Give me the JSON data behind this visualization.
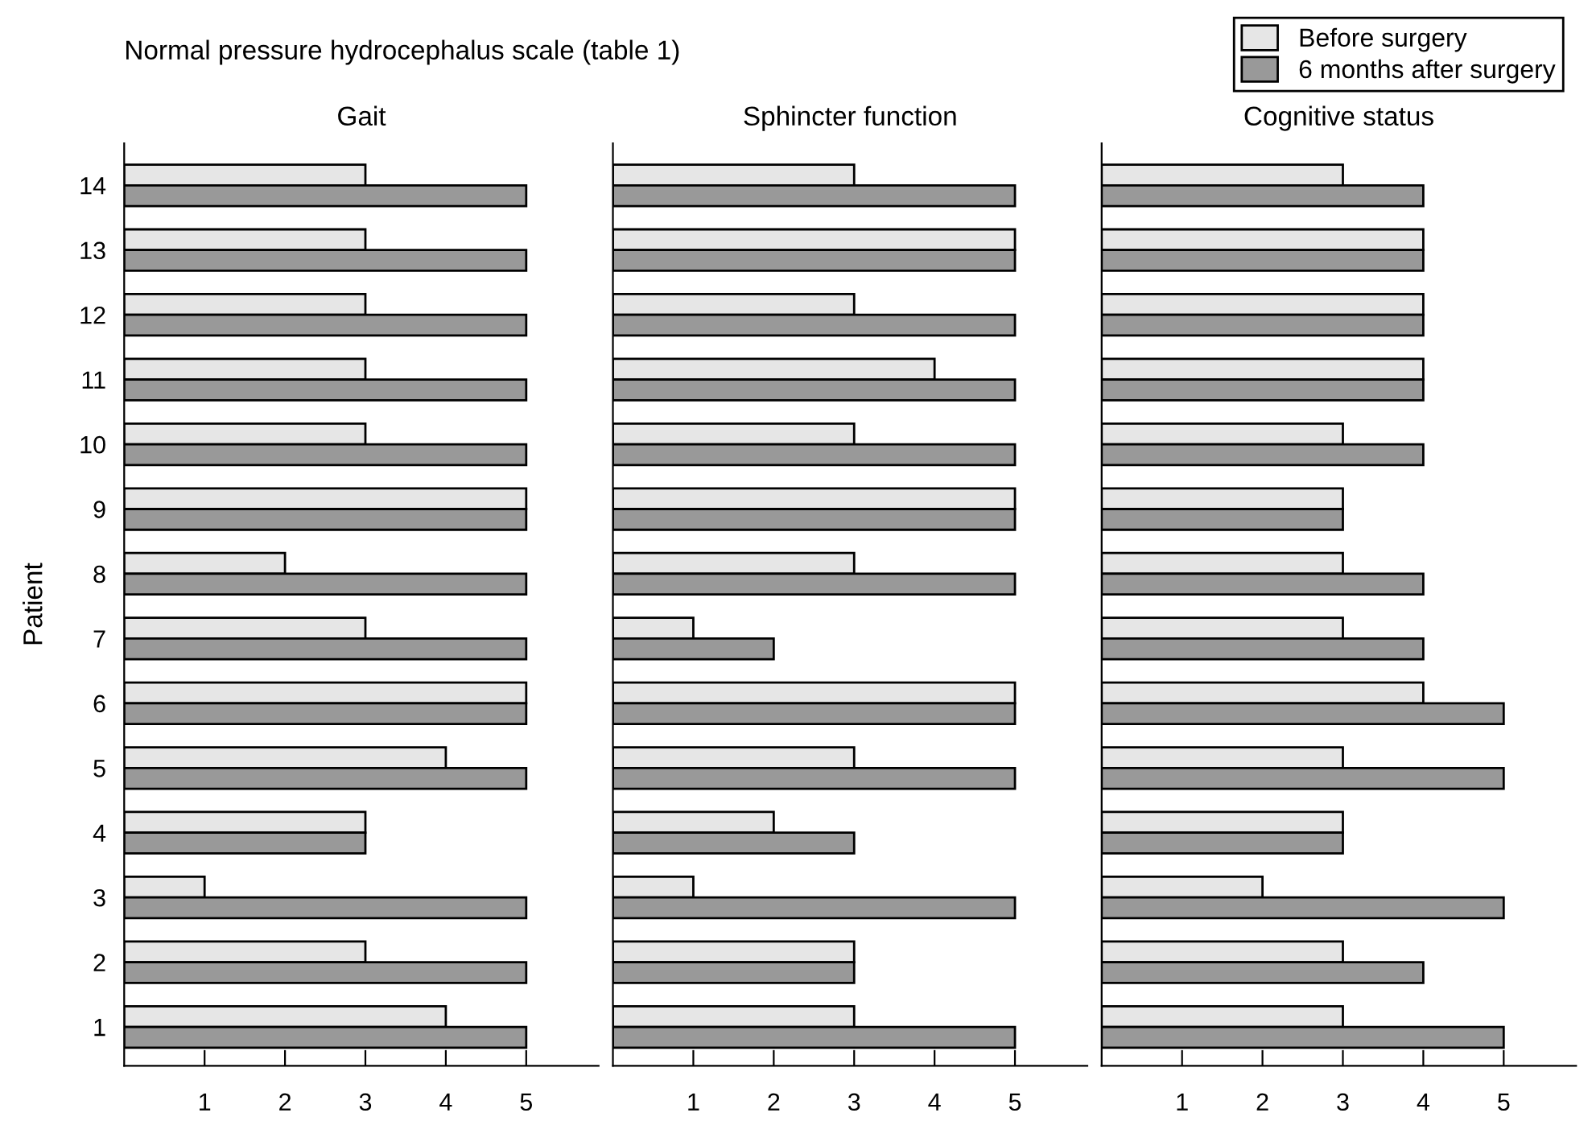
{
  "chart_data": [
    {
      "type": "bar",
      "orientation": "horizontal",
      "title": "Gait",
      "ylabel": "Patient",
      "annotations": [
        "Normal pressure hydrocephalus scale (table 1)"
      ],
      "categories": [
        "14",
        "13",
        "12",
        "11",
        "10",
        "9",
        "8",
        "7",
        "6",
        "5",
        "4",
        "3",
        "2",
        "1"
      ],
      "series": [
        {
          "color": "#e6e6e6",
          "values": [
            3,
            3,
            3,
            3,
            3,
            5,
            2,
            3,
            5,
            4,
            3,
            1,
            3,
            4
          ]
        },
        {
          "color": "#999999",
          "values": [
            5,
            5,
            5,
            5,
            5,
            5,
            5,
            5,
            5,
            5,
            3,
            5,
            5,
            5
          ]
        }
      ],
      "xlim": [
        0,
        5.9
      ],
      "xticks": [
        1,
        2,
        3,
        4,
        5
      ],
      "grid": false,
      "legend": false
    },
    {
      "type": "bar",
      "orientation": "horizontal",
      "title": "Sphincter function",
      "categories": [
        "14",
        "13",
        "12",
        "11",
        "10",
        "9",
        "8",
        "7",
        "6",
        "5",
        "4",
        "3",
        "2",
        "1"
      ],
      "series": [
        {
          "color": "#e6e6e6",
          "values": [
            3,
            5,
            3,
            4,
            3,
            5,
            3,
            1,
            5,
            3,
            2,
            1,
            3,
            3
          ]
        },
        {
          "color": "#999999",
          "values": [
            5,
            5,
            5,
            5,
            5,
            5,
            5,
            2,
            5,
            5,
            3,
            5,
            3,
            5
          ]
        }
      ],
      "xlim": [
        0,
        5.9
      ],
      "xticks": [
        1,
        2,
        3,
        4,
        5
      ],
      "tick_labels": "x",
      "grid": false,
      "legend": false
    },
    {
      "type": "bar",
      "orientation": "horizontal",
      "title": "Cognitive status",
      "categories": [
        "14",
        "13",
        "12",
        "11",
        "10",
        "9",
        "8",
        "7",
        "6",
        "5",
        "4",
        "3",
        "2",
        "1"
      ],
      "series": [
        {
          "name": "Before surgery",
          "color": "#e6e6e6",
          "values": [
            3,
            4,
            4,
            4,
            3,
            3,
            3,
            3,
            4,
            3,
            3,
            2,
            3,
            3
          ]
        },
        {
          "name": "6 months after surgery",
          "color": "#999999",
          "values": [
            4,
            4,
            4,
            4,
            4,
            3,
            4,
            4,
            5,
            5,
            3,
            5,
            4,
            5
          ]
        }
      ],
      "xlim": [
        0,
        5.9
      ],
      "xticks": [
        1,
        2,
        3,
        4,
        5
      ],
      "tick_labels": "x",
      "grid": false,
      "legend": "top right"
    }
  ]
}
